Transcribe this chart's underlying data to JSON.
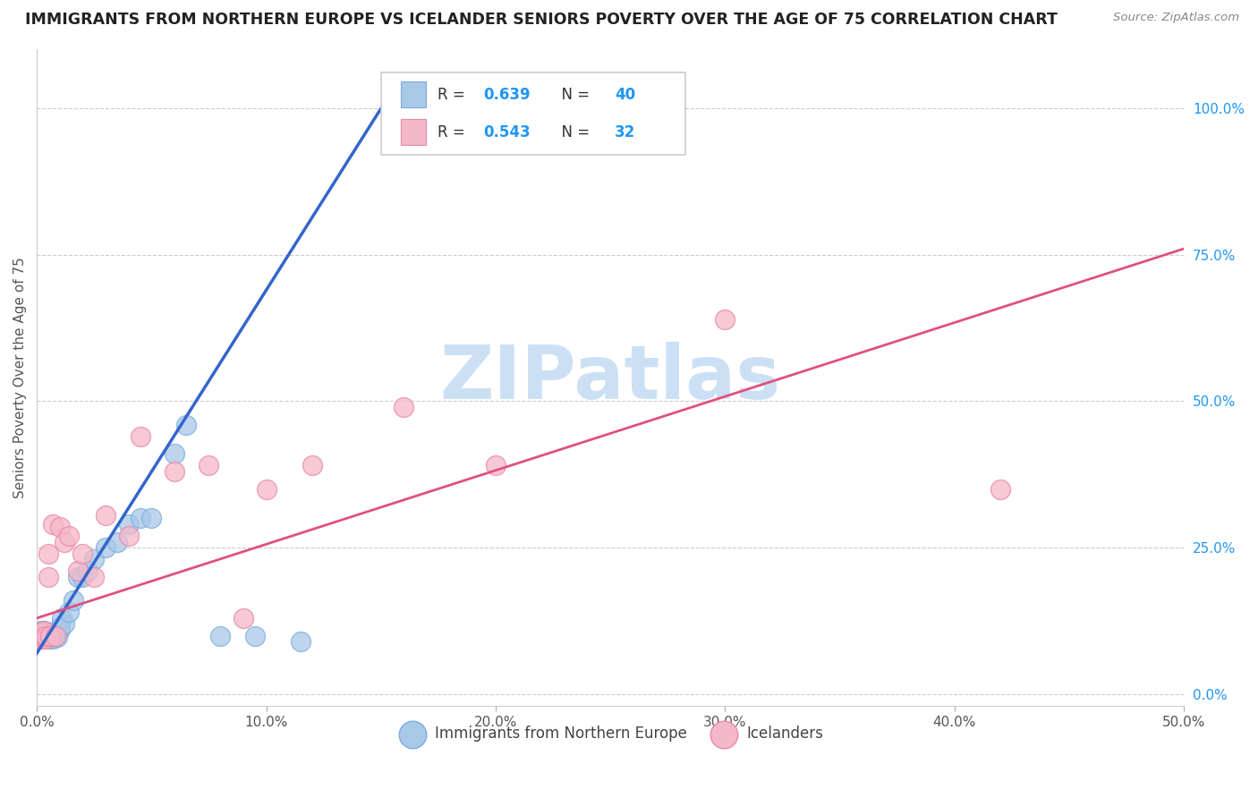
{
  "title": "IMMIGRANTS FROM NORTHERN EUROPE VS ICELANDER SENIORS POVERTY OVER THE AGE OF 75 CORRELATION CHART",
  "source": "Source: ZipAtlas.com",
  "ylabel": "Seniors Poverty Over the Age of 75",
  "xlim": [
    0.0,
    0.5
  ],
  "ylim": [
    -0.02,
    1.1
  ],
  "xticks": [
    0.0,
    0.1,
    0.2,
    0.3,
    0.4,
    0.5
  ],
  "xticklabels": [
    "0.0%",
    "10.0%",
    "20.0%",
    "30.0%",
    "40.0%",
    "50.0%"
  ],
  "yticks_right": [
    0.0,
    0.25,
    0.5,
    0.75,
    1.0
  ],
  "yticklabels_right": [
    "0.0%",
    "25.0%",
    "50.0%",
    "75.0%",
    "100.0%"
  ],
  "grid_color": "#cccccc",
  "watermark": "ZIPatlas",
  "watermark_color": "#cce0f5",
  "series1_color": "#a8c8e8",
  "series2_color": "#f5b8c8",
  "series1_edge_color": "#7aade0",
  "series2_edge_color": "#e888a8",
  "series1_line_color": "#3366cc",
  "series2_line_color": "#e05080",
  "series1_label": "Immigrants from Northern Europe",
  "series2_label": "Icelanders",
  "R1": 0.639,
  "N1": 40,
  "R2": 0.543,
  "N2": 32,
  "legend_r_color": "#2196f3",
  "legend_n_color": "#2196f3",
  "blue_scatter_x": [
    0.001,
    0.001,
    0.001,
    0.002,
    0.002,
    0.002,
    0.003,
    0.003,
    0.003,
    0.004,
    0.004,
    0.004,
    0.005,
    0.005,
    0.006,
    0.006,
    0.007,
    0.007,
    0.008,
    0.009,
    0.01,
    0.01,
    0.011,
    0.012,
    0.014,
    0.016,
    0.018,
    0.02,
    0.022,
    0.025,
    0.03,
    0.035,
    0.04,
    0.045,
    0.05,
    0.06,
    0.065,
    0.08,
    0.095,
    0.115
  ],
  "blue_scatter_y": [
    0.095,
    0.1,
    0.105,
    0.1,
    0.105,
    0.108,
    0.098,
    0.102,
    0.108,
    0.095,
    0.1,
    0.105,
    0.1,
    0.105,
    0.095,
    0.1,
    0.095,
    0.1,
    0.1,
    0.098,
    0.11,
    0.115,
    0.13,
    0.12,
    0.14,
    0.16,
    0.2,
    0.2,
    0.21,
    0.23,
    0.25,
    0.26,
    0.29,
    0.3,
    0.3,
    0.41,
    0.46,
    0.1,
    0.1,
    0.09
  ],
  "pink_scatter_x": [
    0.001,
    0.001,
    0.002,
    0.002,
    0.002,
    0.003,
    0.003,
    0.004,
    0.004,
    0.005,
    0.005,
    0.006,
    0.007,
    0.008,
    0.01,
    0.012,
    0.014,
    0.018,
    0.02,
    0.025,
    0.03,
    0.04,
    0.045,
    0.06,
    0.075,
    0.09,
    0.1,
    0.12,
    0.16,
    0.2,
    0.3,
    0.42
  ],
  "pink_scatter_y": [
    0.095,
    0.1,
    0.095,
    0.1,
    0.105,
    0.1,
    0.108,
    0.095,
    0.1,
    0.2,
    0.24,
    0.1,
    0.29,
    0.1,
    0.285,
    0.26,
    0.27,
    0.21,
    0.24,
    0.2,
    0.305,
    0.27,
    0.44,
    0.38,
    0.39,
    0.13,
    0.35,
    0.39,
    0.49,
    0.39,
    0.64,
    0.35
  ],
  "blue_line_x0": 0.0,
  "blue_line_y0": 0.07,
  "blue_line_x1": 0.155,
  "blue_line_y1": 1.03,
  "pink_line_x0": 0.0,
  "pink_line_y0": 0.13,
  "pink_line_x1": 0.5,
  "pink_line_y1": 0.76
}
